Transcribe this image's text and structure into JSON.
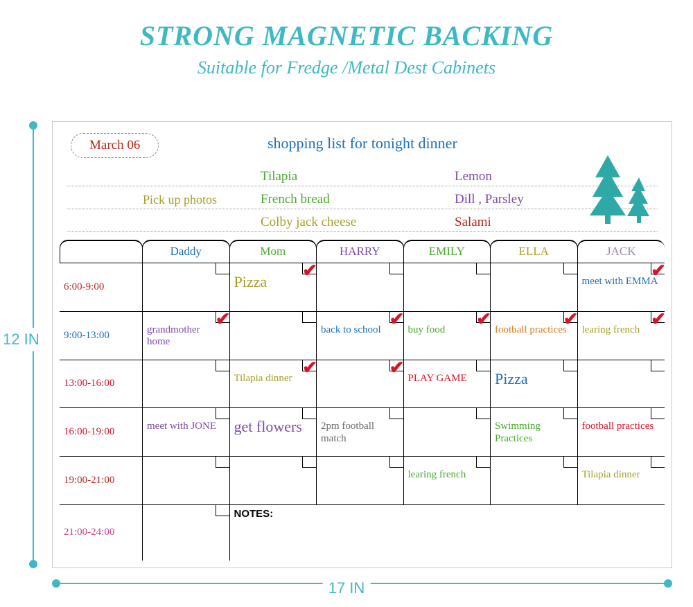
{
  "colors": {
    "teal": "#3eb8c4",
    "red": "#d4152a",
    "blue": "#1d6fb8",
    "green": "#4aa82e",
    "olive": "#a6a02a",
    "purple": "#7c4aa8",
    "magenta": "#c9418e",
    "orange": "#d97b1f",
    "darkred": "#b8291f",
    "treeTeal": "#2fa8a8"
  },
  "typography": {
    "title_family": "Times New Roman, serif",
    "hand_family": "Comic Sans MS, cursive",
    "title_fontsize_pt": 30,
    "subtitle_fontsize_pt": 20,
    "cell_fontsize_pt": 12
  },
  "title": "STRONG MAGNETIC BACKING",
  "subtitle": "Suitable for Fredge /Metal Dest Cabinets",
  "dimensions": {
    "height_label": "12 IN",
    "width_label": "17 IN"
  },
  "header": {
    "date": "March 06",
    "date_color": "#b8291f",
    "shopping_title": "shopping list for tonight dinner",
    "shopping_title_color": "#1d6fb8",
    "note_left": {
      "text": "Pick up photos",
      "color": "#a6a02a"
    },
    "col1": [
      {
        "text": "Tilapia",
        "color": "#4aa82e"
      },
      {
        "text": "French bread",
        "color": "#4aa82e"
      },
      {
        "text": "Colby jack cheese",
        "color": "#a6a02a"
      }
    ],
    "col2": [
      {
        "text": "Lemon",
        "color": "#7c4aa8"
      },
      {
        "text": "Dill , Parsley",
        "color": "#7c4aa8"
      },
      {
        "text": "Salami",
        "color": "#b8291f"
      }
    ]
  },
  "people": [
    {
      "name": "Daddy",
      "color": "#1d6fb8"
    },
    {
      "name": "Mom",
      "color": "#4aa82e"
    },
    {
      "name": "HARRY",
      "color": "#7c4aa8"
    },
    {
      "name": "EMILY",
      "color": "#4aa82e"
    },
    {
      "name": "ELLA",
      "color": "#a6a02a"
    },
    {
      "name": "JACK",
      "color": "#9a8aa8"
    }
  ],
  "times": [
    {
      "label": "6:00-9:00",
      "color": "#b8291f"
    },
    {
      "label": "9:00-13:00",
      "color": "#1d6fb8"
    },
    {
      "label": "13:00-16:00",
      "color": "#d4152a"
    },
    {
      "label": "16:00-19:00",
      "color": "#d4152a"
    },
    {
      "label": "19:00-21:00",
      "color": "#b8291f"
    },
    {
      "label": "21:00-24:00",
      "color": "#c9418e"
    }
  ],
  "notes_label": "NOTES:",
  "schedule": [
    [
      {
        "text": "",
        "check": false
      },
      {
        "text": "Pizza",
        "color": "#a6a02a",
        "check": true,
        "big": true
      },
      {
        "text": "",
        "check": false
      },
      {
        "text": "",
        "check": false
      },
      {
        "text": "",
        "check": false
      },
      {
        "text": "meet with EMMA",
        "color": "#1d6fb8",
        "check": true
      }
    ],
    [
      {
        "text": "grandmother home",
        "color": "#7c4aa8",
        "check": true
      },
      {
        "text": "",
        "check": false
      },
      {
        "text": "back to school",
        "color": "#1d6fb8",
        "check": true
      },
      {
        "text": "buy food",
        "color": "#4aa82e",
        "check": true
      },
      {
        "text": "football practices",
        "color": "#d97b1f",
        "check": true
      },
      {
        "text": "learing french",
        "color": "#a6a02a",
        "check": true
      }
    ],
    [
      {
        "text": "",
        "check": false
      },
      {
        "text": "Tilapia dinner",
        "color": "#a6a02a",
        "check": true
      },
      {
        "text": "",
        "check": true
      },
      {
        "text": "PLAY GAME",
        "color": "#d4152a",
        "check": false
      },
      {
        "text": "Pizza",
        "color": "#1d6fb8",
        "check": false,
        "big": true
      },
      {
        "text": "",
        "check": false
      }
    ],
    [
      {
        "text": "meet with JONE",
        "color": "#7c4aa8",
        "check": false
      },
      {
        "text": "get flowers",
        "color": "#7c4aa8",
        "check": false,
        "big": true
      },
      {
        "text": "2pm football match",
        "color": "#6b6b6b",
        "check": false
      },
      {
        "text": "",
        "check": false
      },
      {
        "text": "Swimming Practices",
        "color": "#4aa82e",
        "check": false
      },
      {
        "text": "football practices",
        "color": "#d4152a",
        "check": false
      }
    ],
    [
      {
        "text": "",
        "check": false
      },
      {
        "text": "",
        "check": false
      },
      {
        "text": "",
        "check": false
      },
      {
        "text": "learing french",
        "color": "#4aa82e",
        "check": false
      },
      {
        "text": "",
        "check": false
      },
      {
        "text": "Tilapia dinner",
        "color": "#a6a02a",
        "check": false
      }
    ]
  ]
}
